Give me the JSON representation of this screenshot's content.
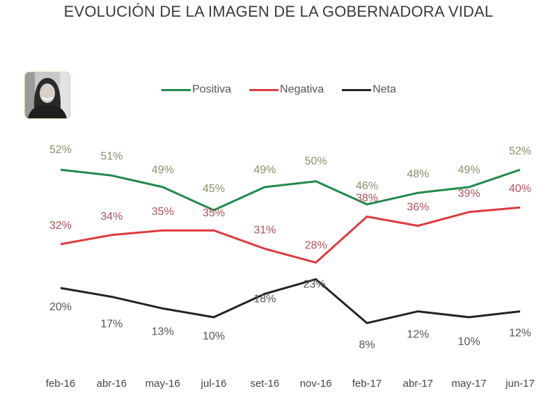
{
  "chart_data": {
    "type": "line",
    "title": "EVOLUCIÓN DE LA IMAGEN DE LA GOBERNADORA VIDAL",
    "xlabel": "",
    "ylabel": "",
    "categories": [
      "feb-16",
      "abr-16",
      "may-16",
      "jul-16",
      "set-16",
      "nov-16",
      "feb-17",
      "abr-17",
      "may-17",
      "jun-17"
    ],
    "series": [
      {
        "name": "Positiva",
        "color": "#1e8a4a",
        "label_color": "#8c8c6a",
        "values": [
          52,
          51,
          49,
          45,
          49,
          50,
          46,
          48,
          49,
          52
        ]
      },
      {
        "name": "Negativa",
        "color": "#e0393e",
        "label_color": "#b0505a",
        "values": [
          32,
          34,
          35,
          35,
          31,
          28,
          38,
          36,
          39,
          40
        ]
      },
      {
        "name": "Neta",
        "color": "#222222",
        "label_color": "#555555",
        "values": [
          20,
          17,
          13,
          10,
          18,
          23,
          8,
          12,
          10,
          12
        ]
      }
    ],
    "value_suffix": "%",
    "grid": false,
    "legend_position": "top-center"
  },
  "header": {
    "title": "EVOLUCIÓN DE LA IMAGEN DE LA GOBERNADORA VIDAL"
  },
  "photo": {
    "description": "portrait of governor Vidal"
  }
}
